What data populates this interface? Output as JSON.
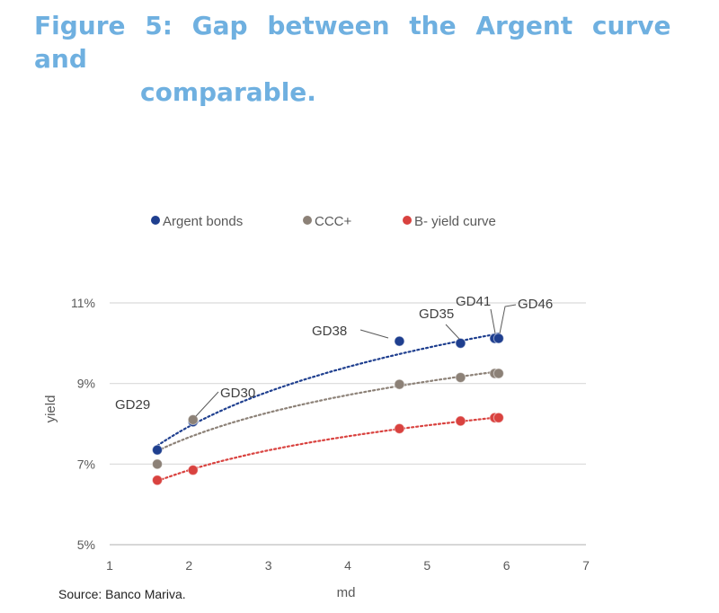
{
  "figure": {
    "title_line1": "Figure 5: Gap between the Argent curve and",
    "title_line2": "comparable.",
    "source": "Source: Banco Mariva."
  },
  "chart_data": {
    "type": "scatter",
    "xlabel": "md",
    "ylabel": "yield",
    "xlim": [
      1,
      7
    ],
    "ylim": [
      5,
      11
    ],
    "x_ticks": [
      1,
      2,
      3,
      4,
      5,
      6,
      7
    ],
    "y_ticks": [
      5,
      7,
      9,
      11
    ],
    "y_tick_format": "%",
    "grid": "horizontal",
    "legend_position": "top",
    "trendline": "dotted logarithmic fit per series",
    "series": [
      {
        "name": "Argent bonds",
        "color": "#1f3f8f",
        "points": [
          {
            "label": "GD29",
            "x": 1.6,
            "y": 7.35
          },
          {
            "label": "GD30",
            "x": 2.05,
            "y": 8.05
          },
          {
            "label": "GD38",
            "x": 4.65,
            "y": 10.05
          },
          {
            "label": "GD35",
            "x": 5.42,
            "y": 10.0
          },
          {
            "label": "GD41",
            "x": 5.85,
            "y": 10.12
          },
          {
            "label": "GD46",
            "x": 5.9,
            "y": 10.12
          }
        ]
      },
      {
        "name": "CCC+",
        "color": "#8c8177",
        "points": [
          {
            "x": 1.6,
            "y": 7.0
          },
          {
            "x": 2.05,
            "y": 8.1
          },
          {
            "x": 4.65,
            "y": 8.98
          },
          {
            "x": 5.42,
            "y": 9.15
          },
          {
            "x": 5.85,
            "y": 9.25
          },
          {
            "x": 5.9,
            "y": 9.25
          }
        ]
      },
      {
        "name": "B- yield curve",
        "color": "#d9423f",
        "points": [
          {
            "x": 1.6,
            "y": 6.6
          },
          {
            "x": 2.05,
            "y": 6.85
          },
          {
            "x": 4.65,
            "y": 7.88
          },
          {
            "x": 5.42,
            "y": 8.07
          },
          {
            "x": 5.85,
            "y": 8.15
          },
          {
            "x": 5.9,
            "y": 8.15
          }
        ]
      }
    ]
  }
}
